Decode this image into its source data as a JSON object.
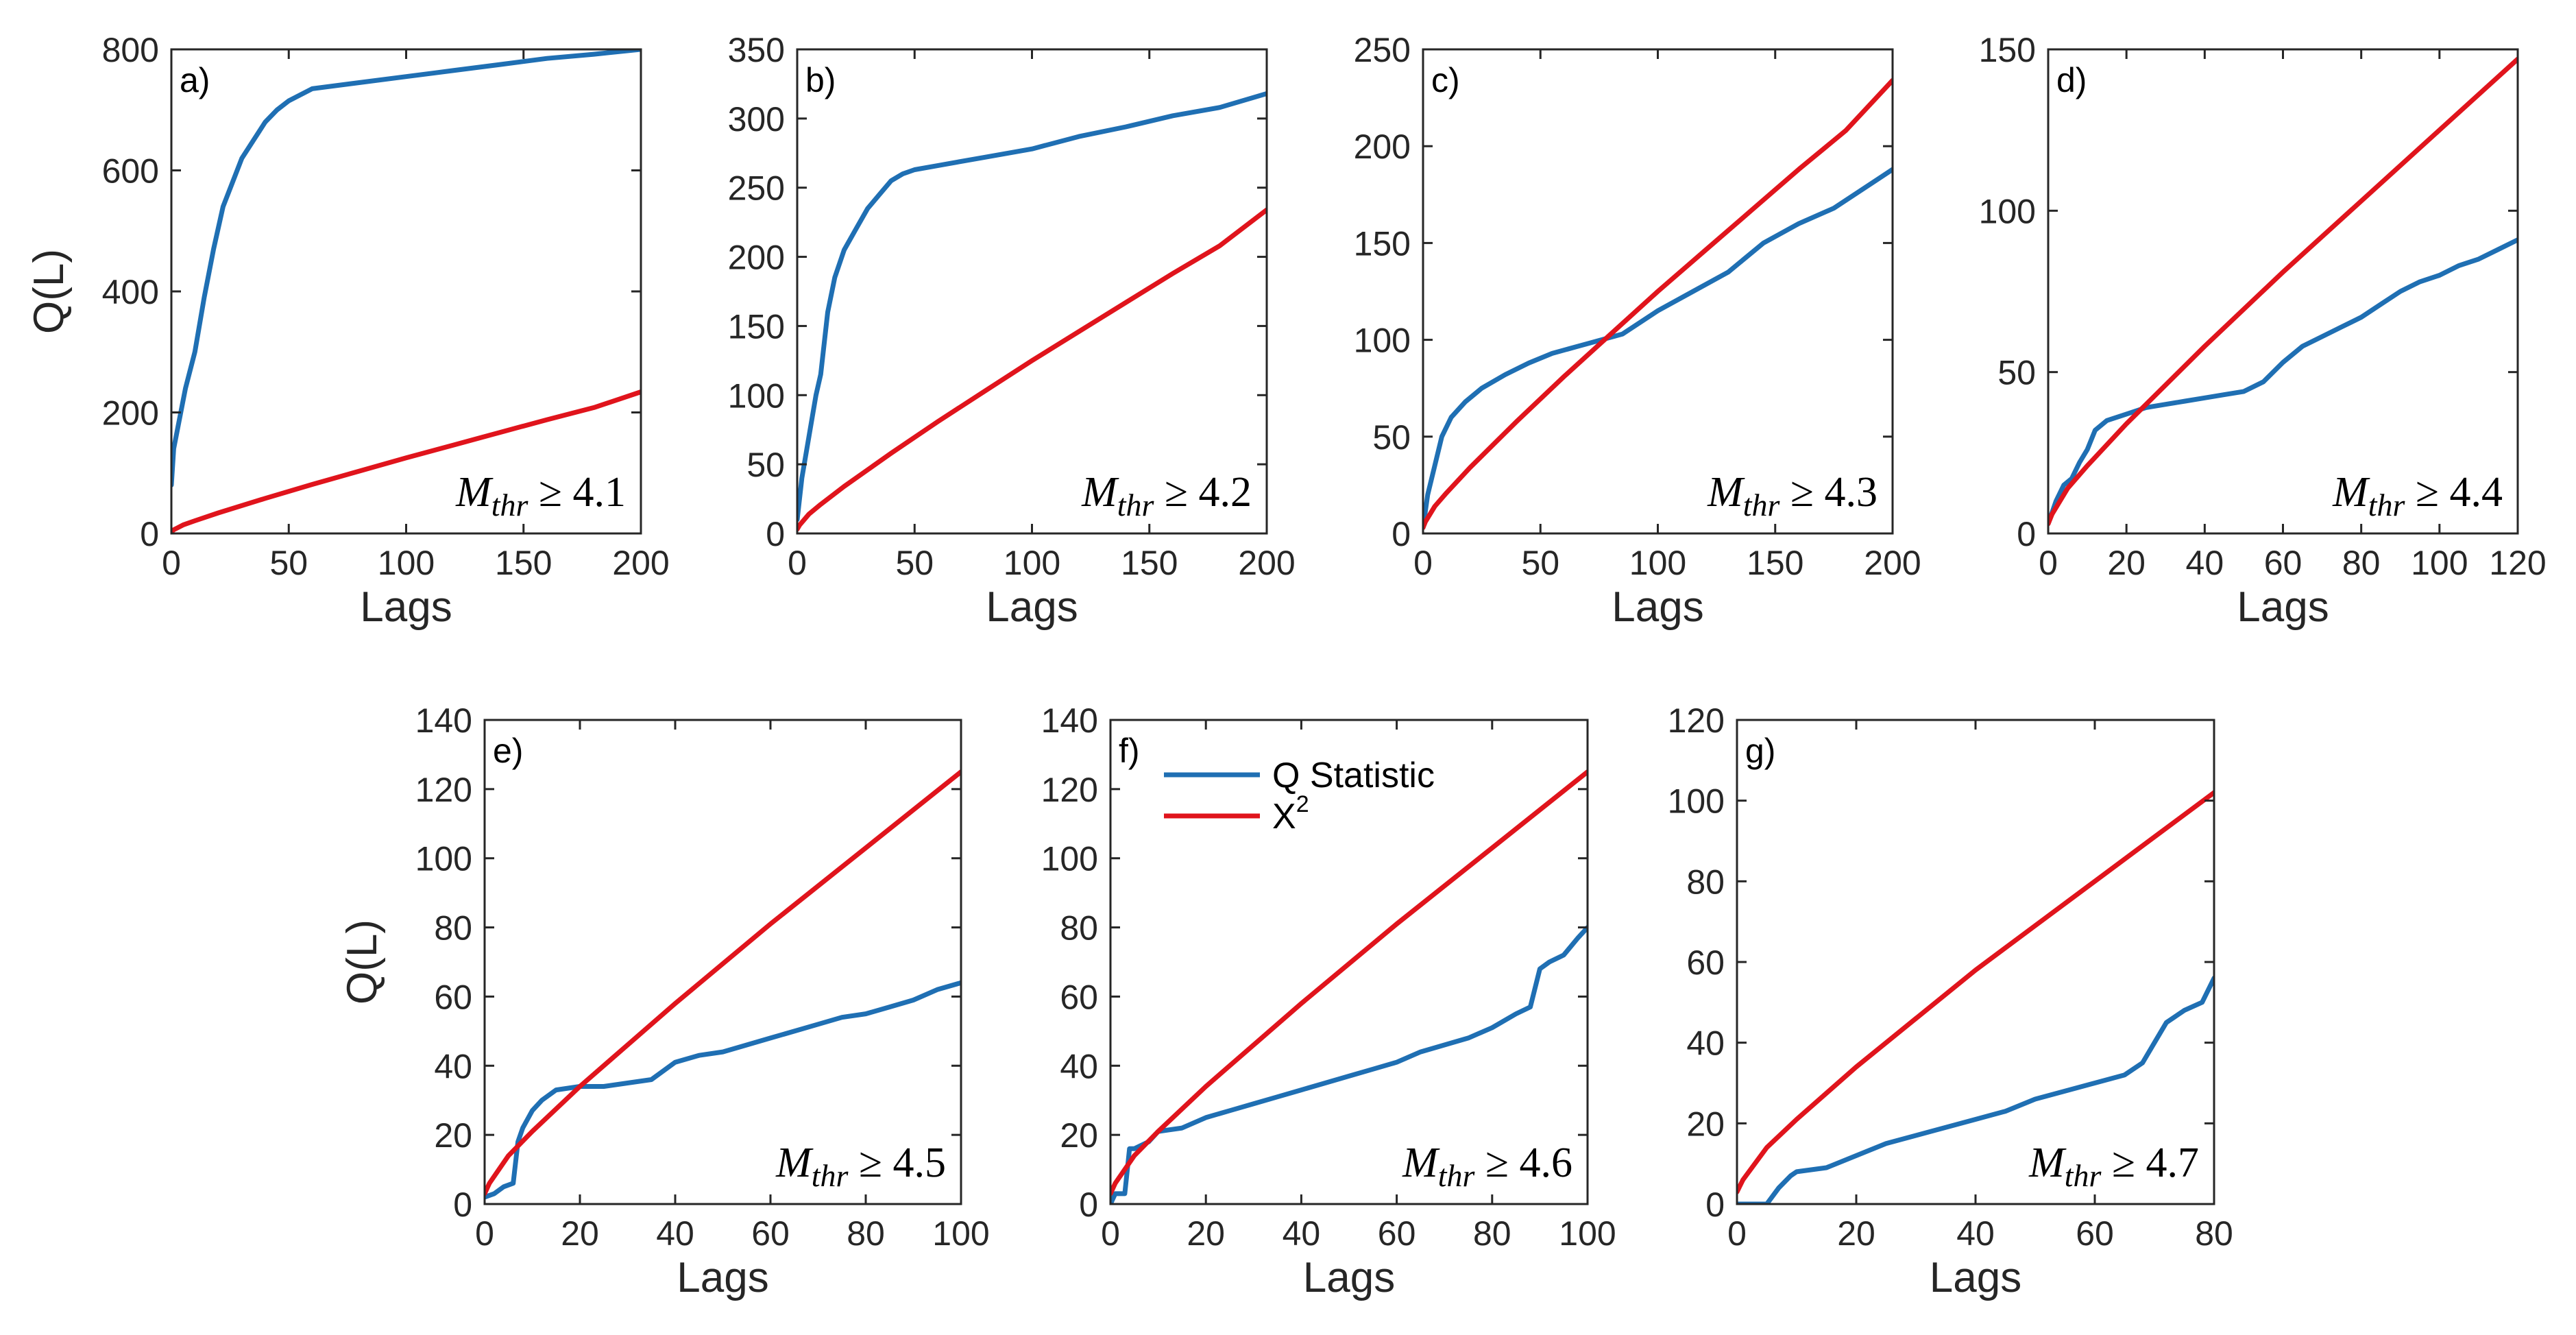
{
  "colors": {
    "q_statistic": "#1f6fb3",
    "chi2": "#e0141c",
    "axis": "#262626"
  },
  "legend": {
    "q_label": "Q Statistic",
    "x_label": "X",
    "x_sup": "2",
    "panel": "f)"
  },
  "chart_data": [
    {
      "type": "line",
      "id": "a",
      "panel_label": "a)",
      "ylabel": "Q(L)",
      "xlabel": "Lags",
      "xlim": [
        0,
        200
      ],
      "ylim": [
        0,
        800
      ],
      "xticks": [
        "0",
        "50",
        "100",
        "150",
        "200"
      ],
      "yticks": [
        "0",
        "200",
        "400",
        "600",
        "800"
      ],
      "annotation": {
        "main": "M",
        "sub": "thr",
        "rest": " ≥ 4.1"
      },
      "series": [
        {
          "name": "Q Statistic",
          "x": [
            0,
            1,
            3,
            6,
            10,
            14,
            18,
            22,
            26,
            30,
            35,
            40,
            45,
            50,
            60,
            80,
            100,
            120,
            140,
            160,
            180,
            200
          ],
          "y": [
            80,
            140,
            180,
            240,
            300,
            390,
            470,
            540,
            580,
            620,
            650,
            680,
            700,
            715,
            735,
            745,
            755,
            765,
            775,
            785,
            792,
            800
          ]
        },
        {
          "name": "X2",
          "x": [
            0,
            1,
            5,
            10,
            20,
            40,
            60,
            80,
            100,
            120,
            140,
            160,
            180,
            200
          ],
          "y": [
            3,
            6,
            14,
            21,
            34,
            58,
            81,
            103,
            125,
            146,
            167,
            188,
            208,
            234
          ]
        }
      ]
    },
    {
      "type": "line",
      "id": "b",
      "panel_label": "b)",
      "ylabel": "",
      "xlabel": "Lags",
      "xlim": [
        0,
        200
      ],
      "ylim": [
        0,
        350
      ],
      "xticks": [
        "0",
        "50",
        "100",
        "150",
        "200"
      ],
      "yticks": [
        "0",
        "50",
        "100",
        "150",
        "200",
        "250",
        "300",
        "350"
      ],
      "annotation": {
        "main": "M",
        "sub": "thr",
        "rest": " ≥ 4.2"
      },
      "series": [
        {
          "name": "Q Statistic",
          "x": [
            0,
            2,
            5,
            8,
            10,
            13,
            16,
            20,
            25,
            30,
            35,
            40,
            45,
            50,
            60,
            80,
            100,
            120,
            140,
            160,
            180,
            200
          ],
          "y": [
            10,
            40,
            70,
            100,
            115,
            160,
            185,
            205,
            220,
            235,
            245,
            255,
            260,
            263,
            266,
            272,
            278,
            287,
            294,
            302,
            308,
            318
          ]
        },
        {
          "name": "X2",
          "x": [
            0,
            1,
            5,
            10,
            20,
            40,
            60,
            80,
            100,
            120,
            140,
            160,
            180,
            200
          ],
          "y": [
            3,
            6,
            14,
            21,
            34,
            58,
            81,
            103,
            125,
            146,
            167,
            188,
            208,
            234
          ]
        }
      ]
    },
    {
      "type": "line",
      "id": "c",
      "panel_label": "c)",
      "ylabel": "",
      "xlabel": "Lags",
      "xlim": [
        0,
        200
      ],
      "ylim": [
        0,
        250
      ],
      "xticks": [
        "0",
        "50",
        "100",
        "150",
        "200"
      ],
      "yticks": [
        "0",
        "50",
        "100",
        "150",
        "200",
        "250"
      ],
      "annotation": {
        "main": "M",
        "sub": "thr",
        "rest": " ≥ 4.3"
      },
      "series": [
        {
          "name": "Q Statistic",
          "x": [
            0,
            2,
            5,
            8,
            12,
            18,
            25,
            35,
            45,
            55,
            70,
            85,
            100,
            115,
            130,
            145,
            160,
            175,
            190,
            200
          ],
          "y": [
            3,
            20,
            35,
            50,
            60,
            68,
            75,
            82,
            88,
            93,
            98,
            103,
            115,
            125,
            135,
            150,
            160,
            168,
            180,
            188
          ]
        },
        {
          "name": "X2",
          "x": [
            0,
            1,
            5,
            10,
            20,
            40,
            60,
            80,
            100,
            120,
            140,
            160,
            180,
            200
          ],
          "y": [
            3,
            6,
            14,
            21,
            34,
            58,
            81,
            103,
            125,
            146,
            167,
            188,
            208,
            234
          ]
        }
      ]
    },
    {
      "type": "line",
      "id": "d",
      "panel_label": "d)",
      "ylabel": "",
      "xlabel": "Lags",
      "xlim": [
        0,
        120
      ],
      "ylim": [
        0,
        150
      ],
      "xticks": [
        "0",
        "20",
        "40",
        "60",
        "80",
        "100",
        "120"
      ],
      "yticks": [
        "0",
        "50",
        "100",
        "150"
      ],
      "annotation": {
        "main": "M",
        "sub": "thr",
        "rest": " ≥ 4.4"
      },
      "series": [
        {
          "name": "Q Statistic",
          "x": [
            0,
            2,
            4,
            6,
            8,
            10,
            12,
            15,
            20,
            25,
            30,
            35,
            40,
            45,
            50,
            55,
            60,
            65,
            70,
            75,
            80,
            85,
            90,
            95,
            100,
            105,
            110,
            115,
            120
          ],
          "y": [
            3,
            10,
            15,
            17,
            22,
            26,
            32,
            35,
            37,
            39,
            40,
            41,
            42,
            43,
            44,
            47,
            53,
            58,
            61,
            64,
            67,
            71,
            75,
            78,
            80,
            83,
            85,
            88,
            91
          ]
        },
        {
          "name": "X2",
          "x": [
            0,
            1,
            5,
            10,
            20,
            30,
            40,
            60,
            80,
            100,
            120
          ],
          "y": [
            3,
            6,
            14,
            21,
            34,
            46,
            58,
            81,
            103,
            125,
            147
          ]
        }
      ]
    },
    {
      "type": "line",
      "id": "e",
      "panel_label": "e)",
      "ylabel": "Q(L)",
      "xlabel": "Lags",
      "xlim": [
        0,
        100
      ],
      "ylim": [
        0,
        140
      ],
      "xticks": [
        "0",
        "20",
        "40",
        "60",
        "80",
        "100"
      ],
      "yticks": [
        "0",
        "20",
        "40",
        "60",
        "80",
        "100",
        "120",
        "140"
      ],
      "annotation": {
        "main": "M",
        "sub": "thr",
        "rest": " ≥ 4.5"
      },
      "series": [
        {
          "name": "Q Statistic",
          "x": [
            0,
            2,
            4,
            6,
            7,
            8,
            10,
            12,
            15,
            20,
            25,
            30,
            35,
            40,
            45,
            50,
            55,
            60,
            65,
            70,
            75,
            80,
            85,
            90,
            95,
            100
          ],
          "y": [
            2,
            3,
            5,
            6,
            18,
            22,
            27,
            30,
            33,
            34,
            34,
            35,
            36,
            41,
            43,
            44,
            46,
            48,
            50,
            52,
            54,
            55,
            57,
            59,
            62,
            64
          ]
        },
        {
          "name": "X2",
          "x": [
            0,
            1,
            5,
            10,
            20,
            30,
            40,
            60,
            80,
            100
          ],
          "y": [
            3,
            6,
            14,
            21,
            34,
            46,
            58,
            81,
            103,
            125
          ]
        }
      ]
    },
    {
      "type": "line",
      "id": "f",
      "panel_label": "f)",
      "ylabel": "",
      "xlabel": "Lags",
      "xlim": [
        0,
        100
      ],
      "ylim": [
        0,
        140
      ],
      "xticks": [
        "0",
        "20",
        "40",
        "60",
        "80",
        "100"
      ],
      "yticks": [
        "0",
        "20",
        "40",
        "60",
        "80",
        "100",
        "120",
        "140"
      ],
      "annotation": {
        "main": "M",
        "sub": "thr",
        "rest": " ≥ 4.6"
      },
      "series": [
        {
          "name": "Q Statistic",
          "x": [
            0,
            1,
            3,
            4,
            5,
            8,
            10,
            15,
            20,
            25,
            30,
            35,
            40,
            45,
            50,
            55,
            60,
            65,
            70,
            75,
            80,
            85,
            88,
            90,
            92,
            95,
            98,
            100
          ],
          "y": [
            0,
            3,
            3,
            16,
            16,
            18,
            21,
            22,
            25,
            27,
            29,
            31,
            33,
            35,
            37,
            39,
            41,
            44,
            46,
            48,
            51,
            55,
            57,
            68,
            70,
            72,
            77,
            80
          ]
        },
        {
          "name": "X2",
          "x": [
            0,
            1,
            5,
            10,
            20,
            30,
            40,
            60,
            80,
            100
          ],
          "y": [
            3,
            6,
            14,
            21,
            34,
            46,
            58,
            81,
            103,
            125
          ]
        }
      ]
    },
    {
      "type": "line",
      "id": "g",
      "panel_label": "g)",
      "ylabel": "",
      "xlabel": "Lags",
      "xlim": [
        0,
        80
      ],
      "ylim": [
        0,
        120
      ],
      "xticks": [
        "0",
        "20",
        "40",
        "60",
        "80"
      ],
      "yticks": [
        "0",
        "20",
        "40",
        "60",
        "80",
        "100",
        "120"
      ],
      "annotation": {
        "main": "M",
        "sub": "thr",
        "rest": " ≥ 4.7"
      },
      "series": [
        {
          "name": "Q Statistic",
          "x": [
            0,
            5,
            7,
            9,
            10,
            15,
            20,
            25,
            30,
            35,
            40,
            45,
            50,
            55,
            60,
            65,
            68,
            70,
            72,
            75,
            78,
            80
          ],
          "y": [
            0,
            0,
            4,
            7,
            8,
            9,
            12,
            15,
            17,
            19,
            21,
            23,
            26,
            28,
            30,
            32,
            35,
            40,
            45,
            48,
            50,
            56
          ]
        },
        {
          "name": "X2",
          "x": [
            0,
            1,
            5,
            10,
            20,
            30,
            40,
            50,
            60,
            70,
            80
          ],
          "y": [
            3,
            6,
            14,
            21,
            34,
            46,
            58,
            69,
            80,
            91,
            102
          ]
        }
      ]
    }
  ]
}
